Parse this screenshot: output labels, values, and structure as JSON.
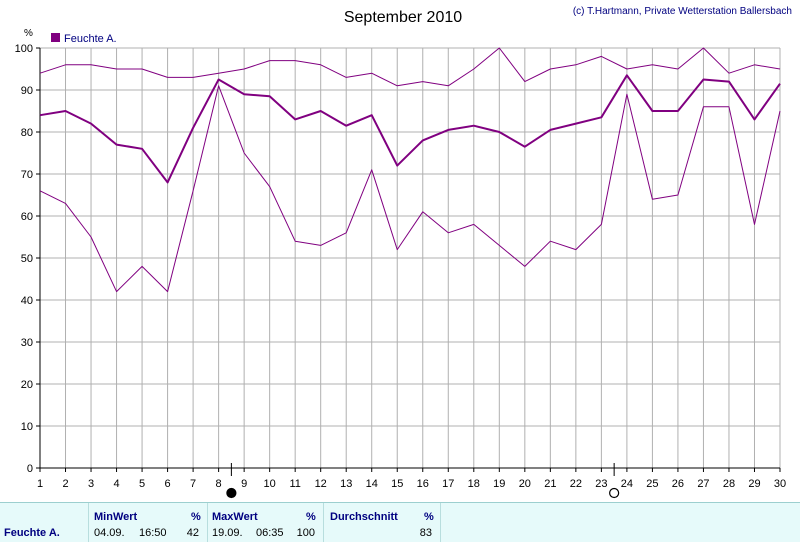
{
  "title": "September 2010",
  "copyright": "(c) T.Hartmann, Private Wetterstation Ballersbach",
  "colors": {
    "series": "#800080",
    "grid": "#b0b0b0",
    "axis": "#000000",
    "moon": "#000000",
    "footer_bg": "#e6fafa"
  },
  "icons": {
    "new_moon": "filled-circle",
    "full_moon": "open-circle"
  },
  "chart_data": {
    "type": "line",
    "ylabel": "%",
    "ylim": [
      0,
      100
    ],
    "yticks": [
      0,
      10,
      20,
      30,
      40,
      50,
      60,
      70,
      80,
      90,
      100
    ],
    "x": [
      1,
      2,
      3,
      4,
      5,
      6,
      7,
      8,
      9,
      10,
      11,
      12,
      13,
      14,
      15,
      16,
      17,
      18,
      19,
      20,
      21,
      22,
      23,
      24,
      25,
      26,
      27,
      28,
      29,
      30
    ],
    "grid": true,
    "legend": "top-left",
    "moon_markers": [
      {
        "day": 8.5,
        "phase": "new_moon"
      },
      {
        "day": 23.5,
        "phase": "full_moon"
      }
    ],
    "series": [
      {
        "name": "Feuchte A.",
        "role": "mean",
        "values": [
          84,
          85,
          82,
          77,
          76,
          68,
          81,
          92.5,
          89,
          88.5,
          83,
          85,
          81.5,
          84,
          72,
          78,
          80.5,
          81.5,
          80,
          76.5,
          80.5,
          82,
          83.5,
          93.5,
          85,
          85,
          92.5,
          92,
          83,
          91.5
        ]
      },
      {
        "role": "max",
        "values": [
          94,
          96,
          96,
          95,
          95,
          93,
          93,
          94,
          95,
          97,
          97,
          96,
          93,
          94,
          91,
          92,
          91,
          95,
          100,
          92,
          95,
          96,
          98,
          95,
          96,
          95,
          100,
          94,
          96,
          95
        ]
      },
      {
        "role": "min",
        "values": [
          66,
          63,
          55,
          42,
          48,
          42,
          66,
          91,
          75,
          67,
          54,
          53,
          56,
          71,
          52,
          61,
          56,
          58,
          53,
          48,
          54,
          52,
          58,
          89,
          64,
          65,
          86,
          86,
          58,
          85
        ]
      }
    ]
  },
  "stats": {
    "row_label": "Feuchte A.",
    "min": {
      "header": "MinWert",
      "unit": "%",
      "date": "04.09.",
      "time": "16:50",
      "value": "42"
    },
    "max": {
      "header": "MaxWert",
      "unit": "%",
      "date": "19.09.",
      "time": "06:35",
      "value": "100"
    },
    "avg": {
      "header": "Durchschnitt",
      "unit": "%",
      "value": "83"
    }
  }
}
